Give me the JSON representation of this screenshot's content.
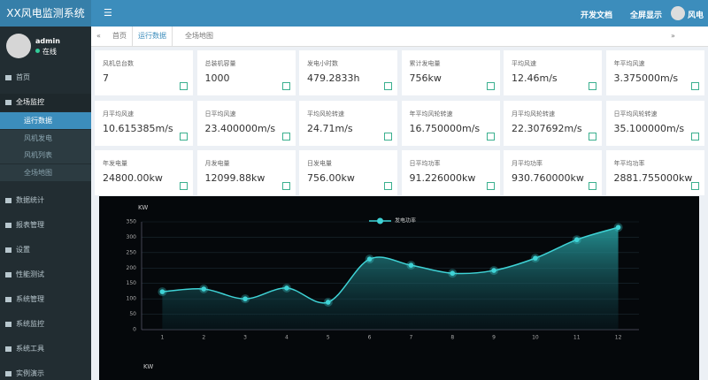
{
  "header": {
    "logo": "XX风电监测系统",
    "links": [
      "开发文档",
      "全屏显示"
    ],
    "user": "风电"
  },
  "sidebar": {
    "user": "admin",
    "status": "在线",
    "menu": [
      {
        "label": "首页"
      },
      {
        "label": "全场监控",
        "children": [
          "运行数据",
          "风机发电",
          "风机列表",
          "全场地图"
        ]
      },
      {
        "label": "数据统计"
      },
      {
        "label": "报表管理"
      },
      {
        "label": "设置"
      },
      {
        "label": "性能测试"
      },
      {
        "label": "系统管理"
      },
      {
        "label": "系统监控"
      },
      {
        "label": "系统工具"
      },
      {
        "label": "实例演示"
      }
    ]
  },
  "tabs": [
    "首页",
    "运行数据",
    "全场地图"
  ],
  "cards": [
    {
      "label": "风机总台数",
      "value": "7"
    },
    {
      "label": "总装机容量",
      "value": "1000"
    },
    {
      "label": "发电小时数",
      "value": "479.2833h"
    },
    {
      "label": "累计发电量",
      "value": "756kw"
    },
    {
      "label": "平均风速",
      "value": "12.46m/s"
    },
    {
      "label": "年平均风速",
      "value": "3.375000m/s"
    },
    {
      "label": "月平均风速",
      "value": "10.615385m/s"
    },
    {
      "label": "日平均风速",
      "value": "23.400000m/s"
    },
    {
      "label": "平均风轮转速",
      "value": "24.71m/s"
    },
    {
      "label": "年平均风轮转速",
      "value": "16.750000m/s"
    },
    {
      "label": "月平均风轮转速",
      "value": "22.307692m/s"
    },
    {
      "label": "日平均风轮转速",
      "value": "35.100000m/s"
    },
    {
      "label": "年发电量",
      "value": "24800.00kw"
    },
    {
      "label": "月发电量",
      "value": "12099.88kw"
    },
    {
      "label": "日发电量",
      "value": "756.00kw"
    },
    {
      "label": "日平均功率",
      "value": "91.226000kw"
    },
    {
      "label": "月平均功率",
      "value": "930.760000kw"
    },
    {
      "label": "年平均功率",
      "value": "2881.755000kw"
    }
  ],
  "chart_data": {
    "type": "line",
    "y_label": "KW",
    "categories": [
      "1",
      "2",
      "3",
      "4",
      "5",
      "6",
      "7",
      "8",
      "9",
      "10",
      "11",
      "12"
    ],
    "series": [
      {
        "name": "发电功率",
        "color": "#3fd3d6",
        "values": [
          123,
          132,
          100,
          135,
          89,
          229,
          209,
          183,
          192,
          232,
          292,
          332
        ]
      }
    ],
    "ylim": [
      0,
      350
    ],
    "yticks": [
      0,
      50,
      100,
      150,
      200,
      250,
      300,
      350
    ],
    "grid": true
  },
  "second_panel": {
    "y_label": "KW"
  }
}
